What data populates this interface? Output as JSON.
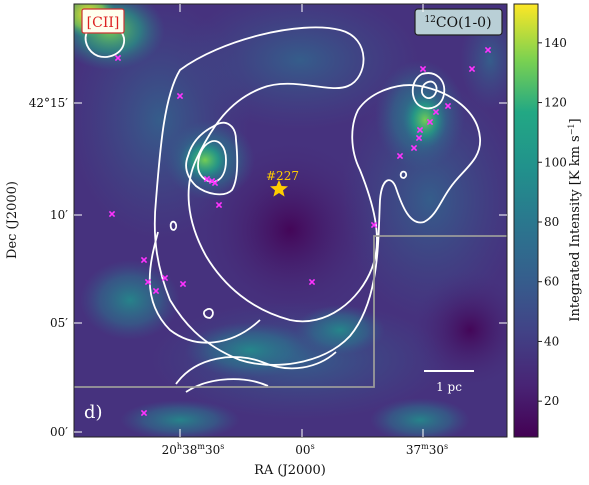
{
  "chart_data": {
    "type": "heatmap",
    "panel_label": "d)",
    "tag_left": "[CII]",
    "tag_right_sup": "12",
    "tag_right": "CO(1-0)",
    "xlabel": "RA (J2000)",
    "ylabel": "Dec (J2000)",
    "x_ticks": [
      {
        "hms": "20h38m30s",
        "parts": [
          "20",
          "h",
          "38",
          "m",
          "30",
          "s"
        ]
      },
      {
        "hms": "00s",
        "parts": [
          "00",
          "s"
        ]
      },
      {
        "hms": "37m30s",
        "parts": [
          "37",
          "m",
          "30",
          "s"
        ]
      }
    ],
    "y_ticks": [
      "42°15′",
      "10′",
      "05′",
      "00′"
    ],
    "colorbar": {
      "label": "Integrated Intensity [K km s⁻¹]",
      "label_main": "Integrated Intensity [K km s",
      "label_sup": "−1",
      "label_end": "]",
      "ticks": [
        20,
        40,
        60,
        80,
        100,
        120,
        140
      ],
      "range": [
        8,
        153
      ],
      "colormap": "viridis"
    },
    "source": {
      "name": "#227",
      "color": "#ffcc00"
    },
    "scalebar_label": "1 pc",
    "marker_color": "#ff33ff",
    "contour_color": "#ffffff"
  }
}
